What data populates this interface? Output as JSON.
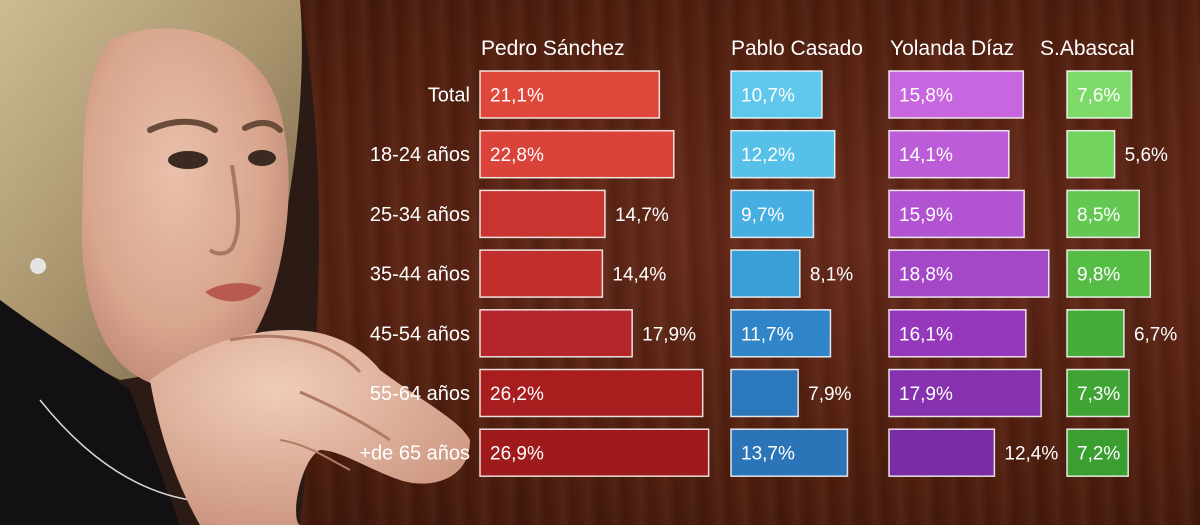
{
  "chart_data": {
    "type": "bar",
    "categories": [
      "Total",
      "18-24 años",
      "25-34 años",
      "35-44 años",
      "45-54 años",
      "55-64 años",
      "+de 65 años"
    ],
    "series": [
      {
        "name": "Pedro Sánchez",
        "values": [
          21.1,
          22.8,
          14.7,
          14.4,
          17.9,
          26.2,
          26.9
        ],
        "labels": [
          "21,1%",
          "22,8%",
          "14,7%",
          "14,4%",
          "17,9%",
          "26,2%",
          "26,9%"
        ],
        "colors": [
          "#e0473b",
          "#d9433a",
          "#c83530",
          "#c02f2b",
          "#b5262a",
          "#a81e1e",
          "#9f1b1b"
        ]
      },
      {
        "name": "Pablo Casado",
        "values": [
          10.7,
          12.2,
          9.7,
          8.1,
          11.7,
          7.9,
          13.7
        ],
        "labels": [
          "10,7%",
          "12,2%",
          "9,7%",
          "8,1%",
          "11,7%",
          "7,9%",
          "13,7%"
        ],
        "colors": [
          "#5fc7ec",
          "#56c0e8",
          "#46aee0",
          "#3a9fd6",
          "#2f85c7",
          "#2b78bd",
          "#2b74b8"
        ]
      },
      {
        "name": "Yolanda Díaz",
        "values": [
          15.8,
          14.1,
          15.9,
          18.8,
          16.1,
          17.9,
          12.4
        ],
        "labels": [
          "15,8%",
          "14,1%",
          "15,9%",
          "18,8%",
          "16,1%",
          "17,9%",
          "12,4%"
        ],
        "colors": [
          "#c766de",
          "#bd5cd8",
          "#b253d1",
          "#a448c7",
          "#9538bb",
          "#8631ae",
          "#7a2ca4"
        ]
      },
      {
        "name": "S.Abascal",
        "values": [
          7.6,
          5.6,
          8.5,
          9.8,
          6.7,
          7.3,
          7.2
        ],
        "labels": [
          "7,6%",
          "5,6%",
          "8,5%",
          "9,8%",
          "6,7%",
          "7,3%",
          "7,2%"
        ],
        "colors": [
          "#7dd96a",
          "#73d35f",
          "#63c852",
          "#55bd45",
          "#46ad39",
          "#3fa434",
          "#3a9e30"
        ]
      }
    ],
    "xlabel": "",
    "ylabel": "",
    "grid": false,
    "legend": "none"
  }
}
